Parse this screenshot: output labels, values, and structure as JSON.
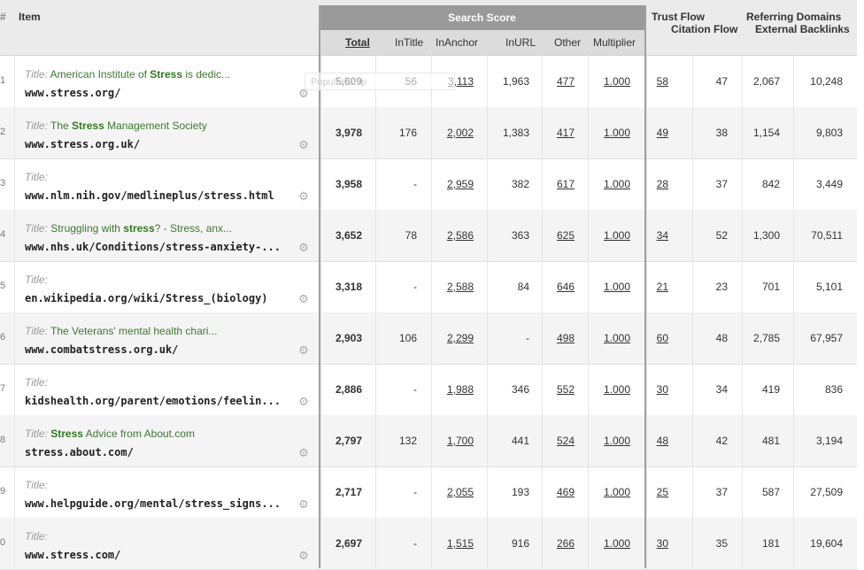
{
  "header": {
    "hash": "#",
    "item": "Item",
    "search_score": "Search Score",
    "total": "Total",
    "intitle": "InTitle",
    "inanchor": "InAnchor",
    "inurl": "InURL",
    "other": "Other",
    "multiplier": "Multiplier",
    "trust_flow": "Trust Flow",
    "citation_flow": "Citation Flow",
    "referring_domains": "Referring Domains",
    "external_backlinks": "External Backlinks"
  },
  "popular_snip": "Popular Snip",
  "rows": [
    {
      "idx": "1",
      "title_label": "Title:",
      "title_pre": "American Institute of ",
      "title_bold": "Stress",
      "title_post": " is dedic...",
      "url": "www.stress.org/",
      "total": "5,609",
      "intitle": "56",
      "inanchor": "3,113",
      "inurl": "1,963",
      "other": "477",
      "multiplier": "1.000",
      "trust": "58",
      "citation": "47",
      "refdomains": "2,067",
      "backlinks": "10,248"
    },
    {
      "idx": "2",
      "title_label": "Title:",
      "title_pre": "The ",
      "title_bold": "Stress",
      "title_post": " Management Society",
      "url": "www.stress.org.uk/",
      "total": "3,978",
      "intitle": "176",
      "inanchor": "2,002",
      "inurl": "1,383",
      "other": "417",
      "multiplier": "1.000",
      "trust": "49",
      "citation": "38",
      "refdomains": "1,154",
      "backlinks": "9,803"
    },
    {
      "idx": "3",
      "title_label": "Title:",
      "title_pre": "",
      "title_bold": "",
      "title_post": "",
      "url": "www.nlm.nih.gov/medlineplus/stress.html",
      "total": "3,958",
      "intitle": "-",
      "inanchor": "2,959",
      "inurl": "382",
      "other": "617",
      "multiplier": "1.000",
      "trust": "28",
      "citation": "37",
      "refdomains": "842",
      "backlinks": "3,449"
    },
    {
      "idx": "4",
      "title_label": "Title:",
      "title_pre": "Struggling with ",
      "title_bold": "stress",
      "title_post": "? - Stress, anx...",
      "url": "www.nhs.uk/Conditions/stress-anxiety-...",
      "total": "3,652",
      "intitle": "78",
      "inanchor": "2,586",
      "inurl": "363",
      "other": "625",
      "multiplier": "1.000",
      "trust": "34",
      "citation": "52",
      "refdomains": "1,300",
      "backlinks": "70,511"
    },
    {
      "idx": "5",
      "title_label": "Title:",
      "title_pre": "",
      "title_bold": "",
      "title_post": "",
      "url": "en.wikipedia.org/wiki/Stress_(biology)",
      "total": "3,318",
      "intitle": "-",
      "inanchor": "2,588",
      "inurl": "84",
      "other": "646",
      "multiplier": "1.000",
      "trust": "21",
      "citation": "23",
      "refdomains": "701",
      "backlinks": "5,101"
    },
    {
      "idx": "6",
      "title_label": "Title:",
      "title_pre": "The Veterans' mental health chari...",
      "title_bold": "",
      "title_post": "",
      "url": "www.combatstress.org.uk/",
      "total": "2,903",
      "intitle": "106",
      "inanchor": "2,299",
      "inurl": "-",
      "other": "498",
      "multiplier": "1.000",
      "trust": "60",
      "citation": "48",
      "refdomains": "2,785",
      "backlinks": "67,957"
    },
    {
      "idx": "7",
      "title_label": "Title:",
      "title_pre": "",
      "title_bold": "",
      "title_post": "",
      "url": "kidshealth.org/parent/emotions/feelin...",
      "total": "2,886",
      "intitle": "-",
      "inanchor": "1,988",
      "inurl": "346",
      "other": "552",
      "multiplier": "1.000",
      "trust": "30",
      "citation": "34",
      "refdomains": "419",
      "backlinks": "836"
    },
    {
      "idx": "8",
      "title_label": "Title:",
      "title_pre": "",
      "title_bold": "Stress",
      "title_post": " Advice from About.com",
      "url": "stress.about.com/",
      "total": "2,797",
      "intitle": "132",
      "inanchor": "1,700",
      "inurl": "441",
      "other": "524",
      "multiplier": "1.000",
      "trust": "48",
      "citation": "42",
      "refdomains": "481",
      "backlinks": "3,194"
    },
    {
      "idx": "9",
      "title_label": "Title:",
      "title_pre": "",
      "title_bold": "",
      "title_post": "",
      "url": "www.helpguide.org/mental/stress_signs...",
      "total": "2,717",
      "intitle": "-",
      "inanchor": "2,055",
      "inurl": "193",
      "other": "469",
      "multiplier": "1.000",
      "trust": "25",
      "citation": "37",
      "refdomains": "587",
      "backlinks": "27,509"
    },
    {
      "idx": "0",
      "title_label": "Title:",
      "title_pre": "",
      "title_bold": "",
      "title_post": "",
      "url": "www.stress.com/",
      "total": "2,697",
      "intitle": "-",
      "inanchor": "1,515",
      "inurl": "916",
      "other": "266",
      "multiplier": "1.000",
      "trust": "30",
      "citation": "35",
      "refdomains": "181",
      "backlinks": "19,604"
    }
  ]
}
